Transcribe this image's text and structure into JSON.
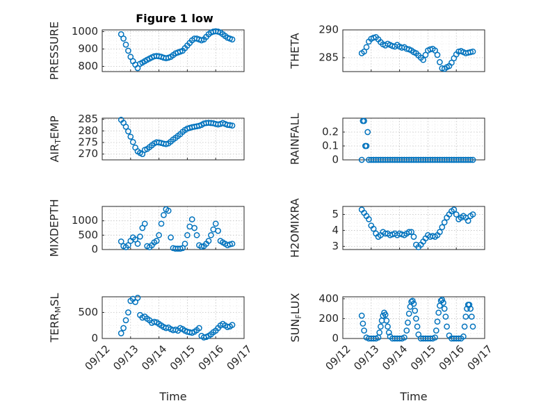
{
  "figure": {
    "title": "Figure 1 low"
  },
  "chart_data": [
    {
      "type": "scatter",
      "id": "pressure",
      "ylabel": "PRESSURE",
      "xlabel": "",
      "ylim": [
        770,
        1010
      ],
      "yticks": [
        800,
        900,
        1000
      ],
      "xlim": [
        "09/12",
        "09/17"
      ],
      "xticks": [
        "09/12",
        "09/13",
        "09/14",
        "09/15",
        "09/16",
        "09/17"
      ],
      "show_xtick_labels": false,
      "grid": true,
      "color": "#0072BD",
      "x": [
        "09/12 16:00",
        "09/12 18:00",
        "09/12 20:00",
        "09/12 22:00",
        "09/13 00:00",
        "09/13 02:00",
        "09/13 04:00",
        "09/13 06:00",
        "09/13 08:00",
        "09/13 10:00",
        "09/13 12:00",
        "09/13 14:00",
        "09/13 16:00",
        "09/13 18:00",
        "09/13 20:00",
        "09/13 22:00",
        "09/14 00:00",
        "09/14 02:00",
        "09/14 04:00",
        "09/14 06:00",
        "09/14 08:00",
        "09/14 10:00",
        "09/14 12:00",
        "09/14 14:00",
        "09/14 16:00",
        "09/14 18:00",
        "09/14 20:00",
        "09/14 22:00",
        "09/15 00:00",
        "09/15 02:00",
        "09/15 04:00",
        "09/15 06:00",
        "09/15 08:00",
        "09/15 10:00",
        "09/15 12:00",
        "09/15 14:00",
        "09/15 16:00",
        "09/15 18:00",
        "09/15 20:00",
        "09/15 22:00",
        "09/16 00:00",
        "09/16 02:00",
        "09/16 04:00",
        "09/16 06:00",
        "09/16 08:00",
        "09/16 10:00",
        "09/16 12:00",
        "09/16 14:00"
      ],
      "y": [
        985,
        960,
        925,
        890,
        855,
        830,
        810,
        790,
        815,
        822,
        830,
        838,
        845,
        852,
        858,
        860,
        858,
        855,
        850,
        847,
        850,
        855,
        865,
        875,
        880,
        885,
        890,
        905,
        920,
        935,
        950,
        960,
        960,
        955,
        950,
        955,
        970,
        985,
        995,
        1000,
        1002,
        1000,
        995,
        985,
        975,
        965,
        960,
        955
      ]
    },
    {
      "type": "scatter",
      "id": "theta",
      "ylabel": "THETA",
      "xlabel": "",
      "ylim": [
        282.5,
        290
      ],
      "yticks": [
        285,
        290
      ],
      "xlim": [
        "09/12",
        "09/17"
      ],
      "xticks": [
        "09/12",
        "09/13",
        "09/14",
        "09/15",
        "09/16",
        "09/17"
      ],
      "show_xtick_labels": false,
      "grid": true,
      "color": "#0072BD",
      "x": [
        "09/12 16:00",
        "09/12 18:00",
        "09/12 20:00",
        "09/12 22:00",
        "09/13 00:00",
        "09/13 02:00",
        "09/13 04:00",
        "09/13 06:00",
        "09/13 08:00",
        "09/13 10:00",
        "09/13 12:00",
        "09/13 14:00",
        "09/13 16:00",
        "09/13 18:00",
        "09/13 20:00",
        "09/13 22:00",
        "09/14 00:00",
        "09/14 02:00",
        "09/14 04:00",
        "09/14 06:00",
        "09/14 08:00",
        "09/14 10:00",
        "09/14 12:00",
        "09/14 14:00",
        "09/14 16:00",
        "09/14 18:00",
        "09/14 20:00",
        "09/14 22:00",
        "09/15 00:00",
        "09/15 02:00",
        "09/15 04:00",
        "09/15 06:00",
        "09/15 08:00",
        "09/15 10:00",
        "09/15 12:00",
        "09/15 14:00",
        "09/15 16:00",
        "09/15 18:00",
        "09/15 20:00",
        "09/15 22:00",
        "09/16 00:00",
        "09/16 02:00",
        "09/16 04:00",
        "09/16 06:00",
        "09/16 08:00",
        "09/16 10:00",
        "09/16 12:00",
        "09/16 14:00"
      ],
      "y": [
        285.8,
        286.1,
        286.9,
        287.9,
        288.4,
        288.6,
        288.7,
        288.3,
        287.8,
        287.4,
        287.2,
        287.5,
        287.3,
        287.1,
        287.0,
        287.3,
        287.0,
        286.8,
        286.9,
        286.6,
        286.5,
        286.3,
        286.0,
        285.8,
        285.4,
        285.0,
        284.6,
        285.5,
        286.3,
        286.5,
        286.6,
        286.3,
        285.5,
        284.2,
        283.1,
        283.0,
        283.3,
        283.5,
        284.1,
        284.9,
        285.6,
        286.1,
        286.2,
        286.0,
        285.8,
        285.9,
        286.0,
        286.1
      ]
    },
    {
      "type": "scatter",
      "id": "air_temp",
      "ylabel": "AIR_TEMP",
      "xlabel": "",
      "ylim": [
        267.5,
        285.5
      ],
      "yticks": [
        270,
        275,
        280,
        285
      ],
      "xlim": [
        "09/12",
        "09/17"
      ],
      "xticks": [
        "09/12",
        "09/13",
        "09/14",
        "09/15",
        "09/16",
        "09/17"
      ],
      "show_xtick_labels": false,
      "grid": true,
      "color": "#0072BD",
      "x": [
        "09/12 16:00",
        "09/12 18:00",
        "09/12 20:00",
        "09/12 22:00",
        "09/13 00:00",
        "09/13 02:00",
        "09/13 04:00",
        "09/13 06:00",
        "09/13 08:00",
        "09/13 10:00",
        "09/13 12:00",
        "09/13 14:00",
        "09/13 16:00",
        "09/13 18:00",
        "09/13 20:00",
        "09/13 22:00",
        "09/14 00:00",
        "09/14 02:00",
        "09/14 04:00",
        "09/14 06:00",
        "09/14 08:00",
        "09/14 10:00",
        "09/14 12:00",
        "09/14 14:00",
        "09/14 16:00",
        "09/14 18:00",
        "09/14 20:00",
        "09/14 22:00",
        "09/15 00:00",
        "09/15 02:00",
        "09/15 04:00",
        "09/15 06:00",
        "09/15 08:00",
        "09/15 10:00",
        "09/15 12:00",
        "09/15 14:00",
        "09/15 16:00",
        "09/15 18:00",
        "09/15 20:00",
        "09/15 22:00",
        "09/16 00:00",
        "09/16 02:00",
        "09/16 04:00",
        "09/16 06:00",
        "09/16 08:00",
        "09/16 10:00",
        "09/16 12:00",
        "09/16 14:00"
      ],
      "y": [
        284.8,
        283.5,
        281.8,
        279.8,
        277.5,
        275.2,
        272.8,
        271.2,
        270.5,
        270.0,
        271.8,
        272.2,
        273.0,
        273.8,
        274.6,
        275.1,
        275.0,
        274.8,
        274.5,
        274.3,
        274.6,
        275.4,
        276.3,
        277.0,
        277.8,
        278.6,
        279.6,
        280.4,
        281.0,
        281.3,
        281.6,
        281.8,
        282.0,
        282.2,
        282.6,
        283.2,
        283.4,
        283.5,
        283.4,
        283.3,
        283.0,
        282.8,
        283.0,
        283.4,
        283.0,
        282.6,
        282.5,
        282.3
      ]
    },
    {
      "type": "scatter",
      "id": "rainfall",
      "ylabel": "RAINFALL",
      "xlabel": "",
      "ylim": [
        0,
        0.3
      ],
      "yticks": [
        0,
        0.1,
        0.2
      ],
      "xlim": [
        "09/12",
        "09/17"
      ],
      "xticks": [
        "09/12",
        "09/13",
        "09/14",
        "09/15",
        "09/16",
        "09/17"
      ],
      "show_xtick_labels": false,
      "grid": true,
      "color": "#0072BD",
      "x": [
        "09/12 16:00",
        "09/12 17:00",
        "09/12 18:00",
        "09/12 19:00",
        "09/12 20:00",
        "09/12 21:00",
        "09/12 22:00",
        "09/13 00:00",
        "09/13 02:00",
        "09/13 04:00",
        "09/13 06:00",
        "09/13 08:00",
        "09/13 10:00",
        "09/13 12:00",
        "09/13 14:00",
        "09/13 16:00",
        "09/13 18:00",
        "09/13 20:00",
        "09/13 22:00",
        "09/14 00:00",
        "09/14 02:00",
        "09/14 04:00",
        "09/14 06:00",
        "09/14 08:00",
        "09/14 10:00",
        "09/14 12:00",
        "09/14 14:00",
        "09/14 16:00",
        "09/14 18:00",
        "09/14 20:00",
        "09/14 22:00",
        "09/15 00:00",
        "09/15 02:00",
        "09/15 04:00",
        "09/15 06:00",
        "09/15 08:00",
        "09/15 10:00",
        "09/15 12:00",
        "09/15 14:00",
        "09/15 16:00",
        "09/15 18:00",
        "09/15 20:00",
        "09/15 22:00",
        "09/16 00:00",
        "09/16 02:00",
        "09/16 04:00",
        "09/16 06:00",
        "09/16 08:00",
        "09/16 10:00",
        "09/16 12:00",
        "09/16 14:00"
      ],
      "y": [
        0,
        0.28,
        0.28,
        0.1,
        0.1,
        0.2,
        0,
        0,
        0,
        0,
        0,
        0,
        0,
        0,
        0,
        0,
        0,
        0,
        0,
        0,
        0,
        0,
        0,
        0,
        0,
        0,
        0,
        0,
        0,
        0,
        0,
        0,
        0,
        0,
        0,
        0,
        0,
        0,
        0,
        0,
        0,
        0,
        0,
        0,
        0,
        0,
        0,
        0,
        0,
        0,
        0
      ]
    },
    {
      "type": "scatter",
      "id": "mixdepth",
      "ylabel": "MIXDEPTH",
      "xlabel": "",
      "ylim": [
        0,
        1500
      ],
      "yticks": [
        0,
        500,
        1000
      ],
      "xlim": [
        "09/12",
        "09/17"
      ],
      "xticks": [
        "09/12",
        "09/13",
        "09/14",
        "09/15",
        "09/16",
        "09/17"
      ],
      "show_xtick_labels": false,
      "grid": true,
      "color": "#0072BD",
      "x": [
        "09/12 16:00",
        "09/12 18:00",
        "09/12 20:00",
        "09/12 22:00",
        "09/13 00:00",
        "09/13 02:00",
        "09/13 04:00",
        "09/13 06:00",
        "09/13 08:00",
        "09/13 10:00",
        "09/13 12:00",
        "09/13 14:00",
        "09/13 16:00",
        "09/13 18:00",
        "09/13 20:00",
        "09/13 22:00",
        "09/14 00:00",
        "09/14 02:00",
        "09/14 04:00",
        "09/14 06:00",
        "09/14 08:00",
        "09/14 10:00",
        "09/14 12:00",
        "09/14 14:00",
        "09/14 16:00",
        "09/14 18:00",
        "09/14 20:00",
        "09/14 22:00",
        "09/15 00:00",
        "09/15 02:00",
        "09/15 04:00",
        "09/15 06:00",
        "09/15 08:00",
        "09/15 10:00",
        "09/15 12:00",
        "09/15 14:00",
        "09/15 16:00",
        "09/15 18:00",
        "09/15 20:00",
        "09/15 22:00",
        "09/16 00:00",
        "09/16 02:00",
        "09/16 04:00",
        "09/16 06:00",
        "09/16 08:00",
        "09/16 10:00",
        "09/16 12:00",
        "09/16 14:00"
      ],
      "y": [
        280,
        120,
        80,
        150,
        300,
        420,
        350,
        200,
        450,
        750,
        900,
        120,
        80,
        150,
        250,
        300,
        500,
        900,
        1200,
        1400,
        1350,
        420,
        50,
        30,
        30,
        30,
        50,
        200,
        500,
        800,
        1050,
        750,
        500,
        150,
        100,
        120,
        200,
        300,
        500,
        700,
        900,
        650,
        300,
        250,
        200,
        150,
        180,
        200
      ]
    },
    {
      "type": "scatter",
      "id": "h2omixra",
      "ylabel": "H2OMIXRA",
      "xlabel": "",
      "ylim": [
        2.8,
        5.5
      ],
      "yticks": [
        3,
        4,
        5
      ],
      "xlim": [
        "09/12",
        "09/17"
      ],
      "xticks": [
        "09/12",
        "09/13",
        "09/14",
        "09/15",
        "09/16",
        "09/17"
      ],
      "show_xtick_labels": false,
      "grid": true,
      "color": "#0072BD",
      "x": [
        "09/12 16:00",
        "09/12 18:00",
        "09/12 20:00",
        "09/12 22:00",
        "09/13 00:00",
        "09/13 02:00",
        "09/13 04:00",
        "09/13 06:00",
        "09/13 08:00",
        "09/13 10:00",
        "09/13 12:00",
        "09/13 14:00",
        "09/13 16:00",
        "09/13 18:00",
        "09/13 20:00",
        "09/13 22:00",
        "09/14 00:00",
        "09/14 02:00",
        "09/14 04:00",
        "09/14 06:00",
        "09/14 08:00",
        "09/14 10:00",
        "09/14 12:00",
        "09/14 14:00",
        "09/14 16:00",
        "09/14 18:00",
        "09/14 20:00",
        "09/14 22:00",
        "09/15 00:00",
        "09/15 02:00",
        "09/15 04:00",
        "09/15 06:00",
        "09/15 08:00",
        "09/15 10:00",
        "09/15 12:00",
        "09/15 14:00",
        "09/15 16:00",
        "09/15 18:00",
        "09/15 20:00",
        "09/15 22:00",
        "09/16 00:00",
        "09/16 02:00",
        "09/16 04:00",
        "09/16 06:00",
        "09/16 08:00",
        "09/16 10:00",
        "09/16 12:00",
        "09/16 14:00"
      ],
      "y": [
        5.3,
        5.1,
        4.9,
        4.7,
        4.3,
        4.1,
        3.8,
        3.6,
        3.7,
        3.9,
        3.8,
        3.8,
        3.7,
        3.75,
        3.8,
        3.7,
        3.8,
        3.75,
        3.7,
        3.8,
        3.9,
        3.9,
        3.6,
        3.1,
        2.95,
        3.1,
        3.3,
        3.5,
        3.7,
        3.6,
        3.65,
        3.6,
        3.7,
        3.9,
        4.2,
        4.5,
        4.8,
        5.0,
        5.2,
        5.3,
        5.0,
        4.7,
        4.8,
        4.9,
        4.8,
        4.6,
        4.9,
        5.0
      ]
    },
    {
      "type": "scatter",
      "id": "terr_msl",
      "ylabel": "TERR_MSL",
      "xlabel": "Time",
      "ylim": [
        0,
        800
      ],
      "yticks": [
        0,
        500
      ],
      "xlim": [
        "09/12",
        "09/17"
      ],
      "xticks": [
        "09/12",
        "09/13",
        "09/14",
        "09/15",
        "09/16",
        "09/17"
      ],
      "show_xtick_labels": true,
      "grid": true,
      "color": "#0072BD",
      "x": [
        "09/12 16:00",
        "09/12 18:00",
        "09/12 20:00",
        "09/12 22:00",
        "09/13 00:00",
        "09/13 02:00",
        "09/13 04:00",
        "09/13 06:00",
        "09/13 08:00",
        "09/13 10:00",
        "09/13 12:00",
        "09/13 14:00",
        "09/13 16:00",
        "09/13 18:00",
        "09/13 20:00",
        "09/13 22:00",
        "09/14 00:00",
        "09/14 02:00",
        "09/14 04:00",
        "09/14 06:00",
        "09/14 08:00",
        "09/14 10:00",
        "09/14 12:00",
        "09/14 14:00",
        "09/14 16:00",
        "09/14 18:00",
        "09/14 20:00",
        "09/14 22:00",
        "09/15 00:00",
        "09/15 02:00",
        "09/15 04:00",
        "09/15 06:00",
        "09/15 08:00",
        "09/15 10:00",
        "09/15 12:00",
        "09/15 14:00",
        "09/15 16:00",
        "09/15 18:00",
        "09/15 20:00",
        "09/15 22:00",
        "09/16 00:00",
        "09/16 02:00",
        "09/16 04:00",
        "09/16 06:00",
        "09/16 08:00",
        "09/16 10:00",
        "09/16 12:00",
        "09/16 14:00"
      ],
      "y": [
        100,
        200,
        350,
        500,
        720,
        760,
        700,
        780,
        450,
        400,
        420,
        380,
        350,
        300,
        320,
        310,
        280,
        250,
        220,
        200,
        210,
        180,
        160,
        170,
        150,
        200,
        180,
        150,
        130,
        120,
        110,
        130,
        160,
        200,
        50,
        20,
        30,
        50,
        80,
        120,
        150,
        200,
        250,
        280,
        250,
        220,
        230,
        260
      ]
    },
    {
      "type": "scatter",
      "id": "sun_flux",
      "ylabel": "SUN_FLUX",
      "xlabel": "Time",
      "ylim": [
        0,
        420
      ],
      "yticks": [
        0,
        200,
        400
      ],
      "xlim": [
        "09/12",
        "09/17"
      ],
      "xticks": [
        "09/12",
        "09/13",
        "09/14",
        "09/15",
        "09/16",
        "09/17"
      ],
      "show_xtick_labels": true,
      "grid": true,
      "color": "#0072BD",
      "x": [
        "09/12 16:00",
        "09/12 17:00",
        "09/12 18:00",
        "09/12 20:00",
        "09/12 22:00",
        "09/13 00:00",
        "09/13 02:00",
        "09/13 04:00",
        "09/13 06:00",
        "09/13 07:00",
        "09/13 08:00",
        "09/13 09:00",
        "09/13 10:00",
        "09/13 11:00",
        "09/13 12:00",
        "09/13 13:00",
        "09/13 14:00",
        "09/13 15:00",
        "09/13 16:00",
        "09/13 18:00",
        "09/13 20:00",
        "09/13 22:00",
        "09/14 00:00",
        "09/14 02:00",
        "09/14 04:00",
        "09/14 06:00",
        "09/14 07:00",
        "09/14 08:00",
        "09/14 09:00",
        "09/14 10:00",
        "09/14 11:00",
        "09/14 12:00",
        "09/14 13:00",
        "09/14 14:00",
        "09/14 15:00",
        "09/14 16:00",
        "09/14 18:00",
        "09/14 20:00",
        "09/14 22:00",
        "09/15 00:00",
        "09/15 02:00",
        "09/15 04:00",
        "09/15 06:00",
        "09/15 07:00",
        "09/15 08:00",
        "09/15 09:00",
        "09/15 10:00",
        "09/15 11:00",
        "09/15 12:00",
        "09/15 13:00",
        "09/15 14:00",
        "09/15 15:00",
        "09/15 16:00",
        "09/15 18:00",
        "09/15 20:00",
        "09/15 22:00",
        "09/16 00:00",
        "09/16 02:00",
        "09/16 04:00",
        "09/16 06:00",
        "09/16 07:00",
        "09/16 08:00",
        "09/16 09:00",
        "09/16 10:00",
        "09/16 11:00",
        "09/16 12:00",
        "09/16 13:00",
        "09/16 14:00"
      ],
      "y": [
        230,
        150,
        80,
        10,
        0,
        0,
        0,
        0,
        10,
        60,
        120,
        180,
        230,
        260,
        240,
        180,
        120,
        60,
        20,
        0,
        0,
        0,
        0,
        0,
        10,
        80,
        160,
        250,
        320,
        370,
        380,
        350,
        280,
        200,
        120,
        40,
        0,
        0,
        0,
        0,
        0,
        0,
        10,
        80,
        170,
        260,
        330,
        380,
        390,
        360,
        300,
        220,
        120,
        30,
        0,
        0,
        0,
        0,
        0,
        20,
        120,
        220,
        300,
        340,
        340,
        300,
        220,
        120
      ]
    }
  ]
}
